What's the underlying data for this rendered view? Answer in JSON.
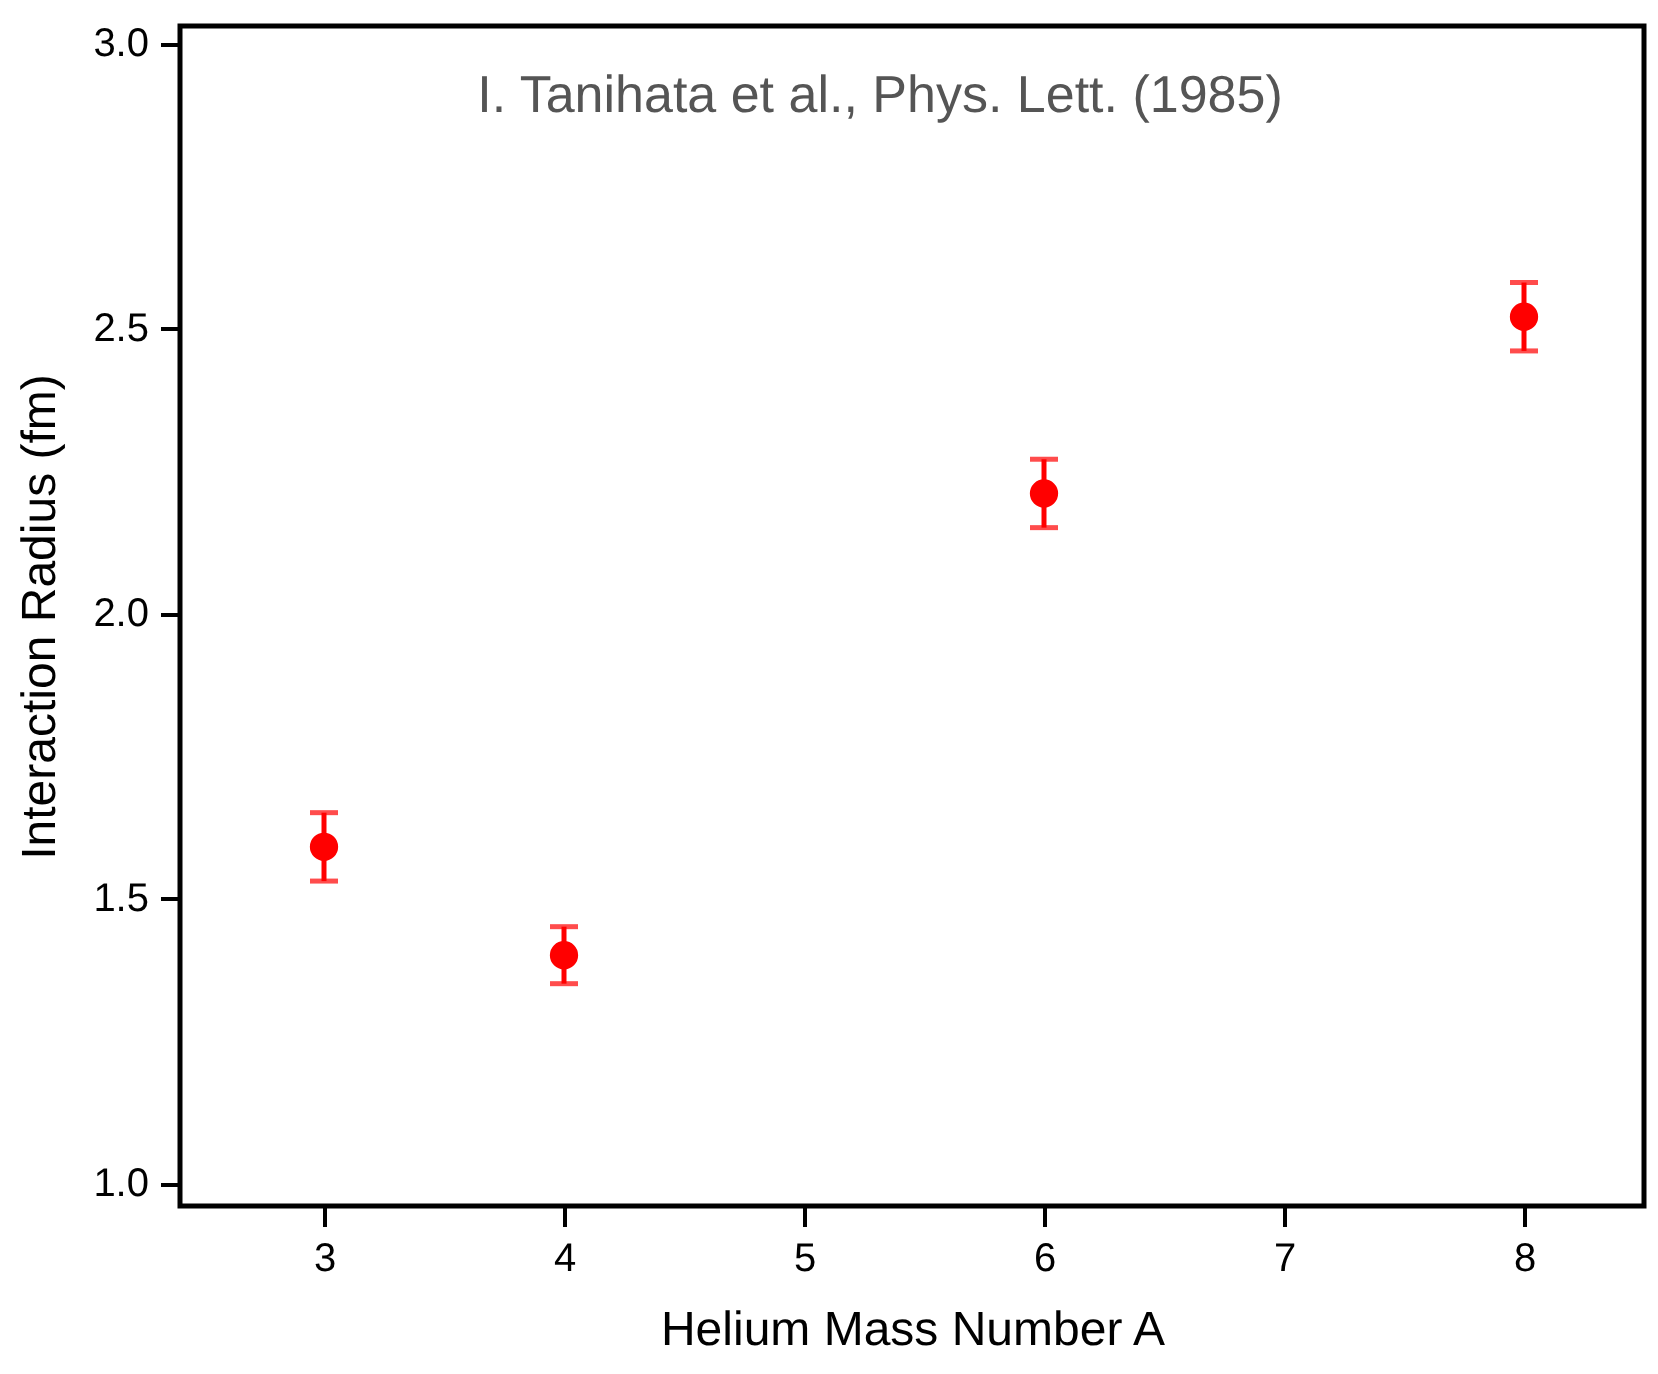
{
  "chart_data": {
    "type": "scatter",
    "xlabel": "Helium Mass Number A",
    "ylabel": "Interaction Radius (fm)",
    "annotations": [
      "I. Tanihata et al., Phys. Lett. (1985)"
    ],
    "x": [
      3,
      4,
      6,
      8
    ],
    "series": [
      {
        "color": "#ff0000",
        "values": [
          1.59,
          1.4,
          2.21,
          2.52
        ],
        "errors": [
          0.06,
          0.05,
          0.06,
          0.06
        ]
      }
    ],
    "xlim": [
      2.4,
      8.5
    ],
    "xticks": [
      3,
      4,
      5,
      6,
      7,
      8
    ],
    "ylim": [
      0.96,
      3.03
    ],
    "yticks": [
      {
        "value": 1,
        "label": "1.0"
      },
      1.5,
      {
        "value": 2,
        "label": "2.0"
      },
      2.5,
      {
        "value": 3,
        "label": "3.0"
      }
    ],
    "grid": false,
    "legend": false,
    "marker": "circle"
  }
}
